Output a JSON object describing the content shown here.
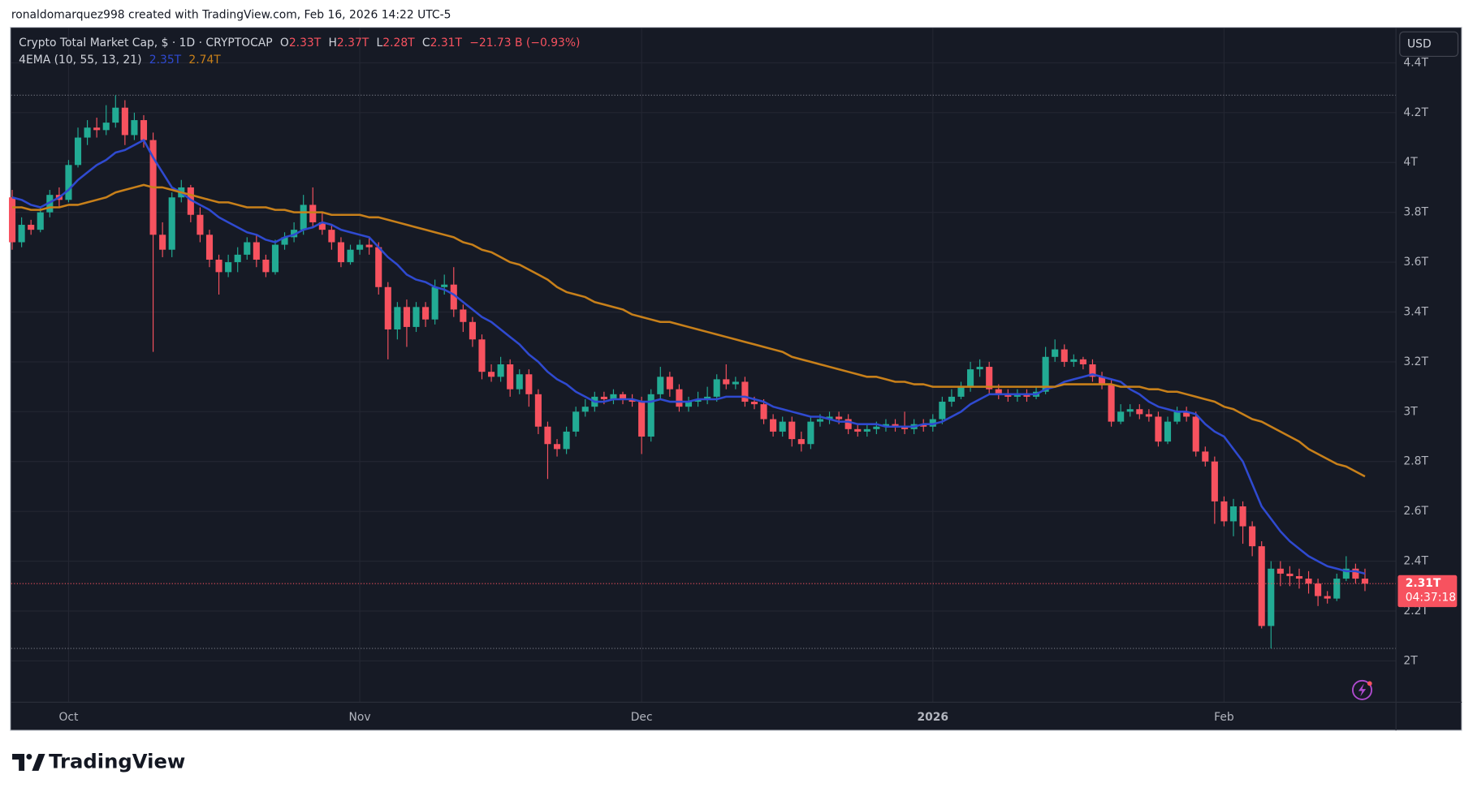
{
  "header": {
    "attribution": "ronaldomarquez998 created with TradingView.com, Feb 16, 2026 14:22 UTC-5"
  },
  "chart_data": {
    "type": "candlestick",
    "title": "Crypto Total Market Cap, $ · 1D · CRYPTOCAP",
    "ohlc_legend": [
      {
        "key": "O",
        "text": "2.33T"
      },
      {
        "key": "H",
        "text": "2.37T"
      },
      {
        "key": "L",
        "text": "2.28T"
      },
      {
        "key": "C",
        "text": "2.31T"
      }
    ],
    "change": "−21.73 B (−0.93%)",
    "currency": "USD",
    "countdown": "04:37:18",
    "up_color": "#22ab94",
    "down_color": "#f7525f",
    "grid": true,
    "ylim": [
      1.834,
      4.539
    ],
    "yticks": [
      {
        "value": 2,
        "label": "2T"
      },
      {
        "value": 2.2,
        "label": "2.2T"
      },
      {
        "value": 2.4,
        "label": "2.4T"
      },
      {
        "value": 2.6,
        "label": "2.6T"
      },
      {
        "value": 2.8,
        "label": "2.8T"
      },
      {
        "value": 3,
        "label": "3T"
      },
      {
        "value": 3.2,
        "label": "3.2T"
      },
      {
        "value": 3.4,
        "label": "3.4T"
      },
      {
        "value": 3.6,
        "label": "3.6T"
      },
      {
        "value": 3.8,
        "label": "3.8T"
      },
      {
        "value": 4,
        "label": "4T"
      },
      {
        "value": 4.2,
        "label": "4.2T"
      },
      {
        "value": 4.4,
        "label": "4.4T"
      }
    ],
    "categories": [
      null,
      null,
      null,
      null,
      null,
      null,
      "Oct",
      null,
      null,
      null,
      null,
      null,
      null,
      null,
      null,
      null,
      null,
      null,
      null,
      null,
      null,
      null,
      null,
      null,
      null,
      null,
      null,
      null,
      null,
      null,
      null,
      null,
      null,
      null,
      null,
      null,
      null,
      "Nov",
      null,
      null,
      null,
      null,
      null,
      null,
      null,
      null,
      null,
      null,
      null,
      null,
      null,
      null,
      null,
      null,
      null,
      null,
      null,
      null,
      null,
      null,
      null,
      null,
      null,
      null,
      null,
      null,
      null,
      "Dec",
      null,
      null,
      null,
      null,
      null,
      null,
      null,
      null,
      null,
      null,
      null,
      null,
      null,
      null,
      null,
      null,
      null,
      null,
      null,
      null,
      null,
      null,
      null,
      null,
      null,
      null,
      null,
      null,
      null,
      null,
      "2026",
      null,
      null,
      null,
      null,
      null,
      null,
      null,
      null,
      null,
      null,
      null,
      null,
      null,
      null,
      null,
      null,
      null,
      null,
      null,
      null,
      null,
      null,
      null,
      null,
      null,
      null,
      null,
      null,
      null,
      null,
      "Feb",
      null,
      null,
      null,
      null,
      null,
      null,
      null,
      null,
      null,
      null,
      null,
      null,
      null,
      null,
      null
    ],
    "open": [
      3.86,
      3.68,
      3.75,
      3.73,
      3.8,
      3.87,
      3.85,
      3.99,
      4.1,
      4.14,
      4.13,
      4.16,
      4.22,
      4.11,
      4.17,
      4.09,
      3.71,
      3.65,
      3.86,
      3.9,
      3.79,
      3.71,
      3.61,
      3.56,
      3.6,
      3.63,
      3.68,
      3.61,
      3.56,
      3.67,
      3.7,
      3.73,
      3.83,
      3.76,
      3.73,
      3.68,
      3.6,
      3.65,
      3.67,
      3.66,
      3.5,
      3.33,
      3.42,
      3.34,
      3.42,
      3.37,
      3.5,
      3.51,
      3.41,
      3.36,
      3.29,
      3.16,
      3.14,
      3.19,
      3.09,
      3.15,
      3.07,
      2.94,
      2.87,
      2.85,
      2.92,
      3.0,
      3.02,
      3.06,
      3.05,
      3.07,
      3.05,
      3.04,
      2.9,
      3.07,
      3.14,
      3.09,
      3.02,
      3.04,
      3.05,
      3.06,
      3.13,
      3.11,
      3.12,
      3.04,
      3.03,
      2.97,
      2.92,
      2.96,
      2.89,
      2.87,
      2.96,
      2.97,
      2.98,
      2.97,
      2.93,
      2.92,
      2.93,
      2.94,
      2.95,
      2.94,
      2.93,
      2.95,
      2.94,
      2.97,
      3.04,
      3.06,
      3.1,
      3.17,
      3.18,
      3.09,
      3.07,
      3.06,
      3.07,
      3.06,
      3.08,
      3.22,
      3.25,
      3.2,
      3.21,
      3.19,
      3.14,
      3.11,
      2.96,
      3.0,
      3.01,
      2.99,
      2.98,
      2.88,
      2.96,
      3.0,
      2.98,
      2.84,
      2.8,
      2.64,
      2.56,
      2.62,
      2.54,
      2.46,
      2.14,
      2.37,
      2.35,
      2.34,
      2.33,
      2.31,
      2.26,
      2.25,
      2.33,
      2.37,
      2.33
    ],
    "high": [
      3.89,
      3.78,
      3.77,
      3.82,
      3.89,
      3.9,
      4.01,
      4.14,
      4.17,
      4.18,
      4.23,
      4.27,
      4.25,
      4.2,
      4.19,
      4.12,
      3.76,
      3.88,
      3.93,
      3.91,
      3.82,
      3.73,
      3.63,
      3.63,
      3.66,
      3.7,
      3.71,
      3.63,
      3.69,
      3.72,
      3.76,
      3.87,
      3.9,
      3.8,
      3.75,
      3.7,
      3.67,
      3.69,
      3.7,
      3.68,
      3.52,
      3.44,
      3.45,
      3.44,
      3.44,
      3.53,
      3.55,
      3.58,
      3.43,
      3.38,
      3.31,
      3.19,
      3.22,
      3.21,
      3.17,
      3.17,
      3.09,
      2.96,
      2.89,
      2.94,
      3.02,
      3.05,
      3.08,
      3.08,
      3.09,
      3.08,
      3.07,
      3.06,
      3.09,
      3.18,
      3.16,
      3.11,
      3.06,
      3.08,
      3.1,
      3.15,
      3.19,
      3.14,
      3.14,
      3.06,
      3.05,
      2.99,
      2.98,
      2.98,
      2.92,
      2.98,
      2.99,
      3.0,
      3.0,
      2.99,
      2.95,
      2.95,
      2.96,
      2.97,
      2.97,
      3.0,
      2.97,
      2.97,
      2.99,
      3.06,
      3.09,
      3.12,
      3.2,
      3.21,
      3.2,
      3.11,
      3.09,
      3.09,
      3.09,
      3.1,
      3.26,
      3.29,
      3.27,
      3.23,
      3.22,
      3.21,
      3.16,
      3.13,
      3.03,
      3.03,
      3.03,
      3.01,
      3.0,
      2.98,
      3.02,
      3.02,
      3.0,
      2.86,
      2.82,
      2.66,
      2.65,
      2.64,
      2.56,
      2.48,
      2.4,
      2.4,
      2.38,
      2.37,
      2.36,
      2.33,
      2.28,
      2.35,
      2.42,
      2.39,
      2.37
    ],
    "low": [
      3.65,
      3.66,
      3.71,
      3.72,
      3.78,
      3.82,
      3.84,
      3.98,
      4.07,
      4.1,
      4.11,
      4.14,
      4.07,
      4.09,
      4.06,
      3.24,
      3.62,
      3.62,
      3.84,
      3.76,
      3.68,
      3.58,
      3.47,
      3.54,
      3.56,
      3.61,
      3.58,
      3.54,
      3.55,
      3.65,
      3.68,
      3.71,
      3.74,
      3.71,
      3.65,
      3.58,
      3.59,
      3.63,
      3.63,
      3.47,
      3.21,
      3.29,
      3.26,
      3.32,
      3.34,
      3.35,
      3.47,
      3.38,
      3.32,
      3.26,
      3.13,
      3.12,
      3.12,
      3.06,
      3.07,
      3.02,
      2.91,
      2.73,
      2.82,
      2.83,
      2.9,
      2.98,
      3.0,
      3.03,
      3.03,
      3.03,
      3.02,
      2.83,
      2.88,
      3.05,
      3.06,
      3.0,
      3.0,
      3.02,
      3.03,
      3.04,
      3.09,
      3.09,
      3.02,
      3.01,
      2.95,
      2.9,
      2.9,
      2.86,
      2.84,
      2.85,
      2.94,
      2.95,
      2.95,
      2.91,
      2.9,
      2.9,
      2.91,
      2.92,
      2.92,
      2.91,
      2.91,
      2.92,
      2.92,
      2.95,
      3.02,
      3.05,
      3.08,
      3.14,
      3.07,
      3.05,
      3.04,
      3.04,
      3.04,
      3.05,
      3.07,
      3.2,
      3.18,
      3.18,
      3.17,
      3.12,
      3.09,
      2.94,
      2.95,
      2.98,
      2.97,
      2.96,
      2.86,
      2.87,
      2.95,
      2.96,
      2.82,
      2.78,
      2.55,
      2.54,
      2.5,
      2.47,
      2.42,
      2.13,
      2.05,
      2.3,
      2.3,
      2.29,
      2.27,
      2.22,
      2.23,
      2.24,
      2.32,
      2.31,
      2.28
    ],
    "close": [
      3.68,
      3.75,
      3.73,
      3.8,
      3.87,
      3.85,
      3.99,
      4.1,
      4.14,
      4.13,
      4.16,
      4.22,
      4.11,
      4.17,
      4.09,
      3.71,
      3.65,
      3.86,
      3.9,
      3.79,
      3.71,
      3.61,
      3.56,
      3.6,
      3.63,
      3.68,
      3.61,
      3.56,
      3.67,
      3.7,
      3.73,
      3.83,
      3.76,
      3.73,
      3.68,
      3.6,
      3.65,
      3.67,
      3.66,
      3.5,
      3.33,
      3.42,
      3.34,
      3.42,
      3.37,
      3.5,
      3.51,
      3.41,
      3.36,
      3.29,
      3.16,
      3.14,
      3.19,
      3.09,
      3.15,
      3.07,
      2.94,
      2.87,
      2.85,
      2.92,
      3.0,
      3.02,
      3.06,
      3.05,
      3.07,
      3.05,
      3.04,
      2.9,
      3.07,
      3.14,
      3.09,
      3.02,
      3.04,
      3.05,
      3.06,
      3.13,
      3.11,
      3.12,
      3.04,
      3.03,
      2.97,
      2.92,
      2.96,
      2.89,
      2.87,
      2.96,
      2.97,
      2.98,
      2.97,
      2.93,
      2.92,
      2.93,
      2.94,
      2.95,
      2.94,
      2.93,
      2.95,
      2.94,
      2.97,
      3.04,
      3.06,
      3.1,
      3.17,
      3.18,
      3.09,
      3.07,
      3.06,
      3.07,
      3.06,
      3.08,
      3.22,
      3.25,
      3.2,
      3.21,
      3.19,
      3.14,
      3.11,
      2.96,
      3.0,
      3.01,
      2.99,
      2.98,
      2.88,
      2.96,
      3.0,
      2.98,
      2.84,
      2.8,
      2.64,
      2.56,
      2.62,
      2.54,
      2.46,
      2.14,
      2.37,
      2.35,
      2.34,
      2.33,
      2.31,
      2.26,
      2.25,
      2.33,
      2.37,
      2.33,
      2.31
    ],
    "indicator": {
      "name": "4EMA (10, 55, 13, 21)",
      "lines": [
        {
          "color": "#2f4ad0",
          "value_label": "2.35T",
          "values": [
            3.86,
            3.85,
            3.83,
            3.82,
            3.84,
            3.86,
            3.89,
            3.93,
            3.96,
            3.99,
            4.01,
            4.04,
            4.05,
            4.07,
            4.09,
            4.02,
            3.96,
            3.9,
            3.88,
            3.85,
            3.83,
            3.81,
            3.78,
            3.76,
            3.74,
            3.72,
            3.71,
            3.69,
            3.68,
            3.7,
            3.71,
            3.73,
            3.74,
            3.76,
            3.75,
            3.73,
            3.72,
            3.71,
            3.7,
            3.66,
            3.62,
            3.59,
            3.55,
            3.53,
            3.52,
            3.5,
            3.49,
            3.47,
            3.44,
            3.41,
            3.38,
            3.36,
            3.33,
            3.3,
            3.27,
            3.23,
            3.2,
            3.16,
            3.13,
            3.11,
            3.08,
            3.06,
            3.04,
            3.04,
            3.05,
            3.05,
            3.05,
            3.04,
            3.04,
            3.05,
            3.04,
            3.04,
            3.04,
            3.05,
            3.05,
            3.05,
            3.06,
            3.06,
            3.06,
            3.05,
            3.04,
            3.02,
            3.01,
            3.0,
            2.99,
            2.98,
            2.98,
            2.97,
            2.96,
            2.96,
            2.95,
            2.95,
            2.95,
            2.94,
            2.94,
            2.94,
            2.94,
            2.95,
            2.95,
            2.96,
            2.98,
            3.0,
            3.03,
            3.05,
            3.07,
            3.07,
            3.07,
            3.07,
            3.07,
            3.07,
            3.09,
            3.1,
            3.12,
            3.13,
            3.14,
            3.15,
            3.14,
            3.13,
            3.12,
            3.09,
            3.07,
            3.04,
            3.02,
            3.01,
            3.0,
            3.0,
            2.99,
            2.95,
            2.92,
            2.9,
            2.85,
            2.8,
            2.71,
            2.62,
            2.57,
            2.52,
            2.48,
            2.45,
            2.42,
            2.4,
            2.38,
            2.37,
            2.36,
            2.36,
            2.35
          ]
        },
        {
          "color": "#c8801a",
          "value_label": "2.74T",
          "values": [
            3.82,
            3.82,
            3.81,
            3.81,
            3.82,
            3.82,
            3.83,
            3.83,
            3.84,
            3.85,
            3.86,
            3.88,
            3.89,
            3.9,
            3.91,
            3.9,
            3.9,
            3.89,
            3.88,
            3.87,
            3.86,
            3.85,
            3.84,
            3.84,
            3.83,
            3.82,
            3.82,
            3.82,
            3.81,
            3.81,
            3.8,
            3.8,
            3.8,
            3.8,
            3.79,
            3.79,
            3.79,
            3.79,
            3.78,
            3.78,
            3.77,
            3.76,
            3.75,
            3.74,
            3.73,
            3.72,
            3.71,
            3.7,
            3.68,
            3.67,
            3.65,
            3.64,
            3.62,
            3.6,
            3.59,
            3.57,
            3.55,
            3.53,
            3.5,
            3.48,
            3.47,
            3.46,
            3.44,
            3.43,
            3.42,
            3.41,
            3.39,
            3.38,
            3.37,
            3.36,
            3.36,
            3.35,
            3.34,
            3.33,
            3.32,
            3.31,
            3.3,
            3.29,
            3.28,
            3.27,
            3.26,
            3.25,
            3.24,
            3.22,
            3.21,
            3.2,
            3.19,
            3.18,
            3.17,
            3.16,
            3.15,
            3.14,
            3.14,
            3.13,
            3.12,
            3.12,
            3.11,
            3.11,
            3.1,
            3.1,
            3.1,
            3.1,
            3.1,
            3.1,
            3.1,
            3.1,
            3.1,
            3.1,
            3.1,
            3.1,
            3.1,
            3.1,
            3.11,
            3.11,
            3.11,
            3.11,
            3.11,
            3.11,
            3.1,
            3.1,
            3.1,
            3.09,
            3.09,
            3.08,
            3.08,
            3.07,
            3.06,
            3.05,
            3.04,
            3.02,
            3.01,
            2.99,
            2.97,
            2.96,
            2.94,
            2.92,
            2.9,
            2.88,
            2.85,
            2.83,
            2.81,
            2.79,
            2.78,
            2.76,
            2.74
          ]
        }
      ]
    }
  },
  "logo": {
    "text": "TradingView"
  }
}
